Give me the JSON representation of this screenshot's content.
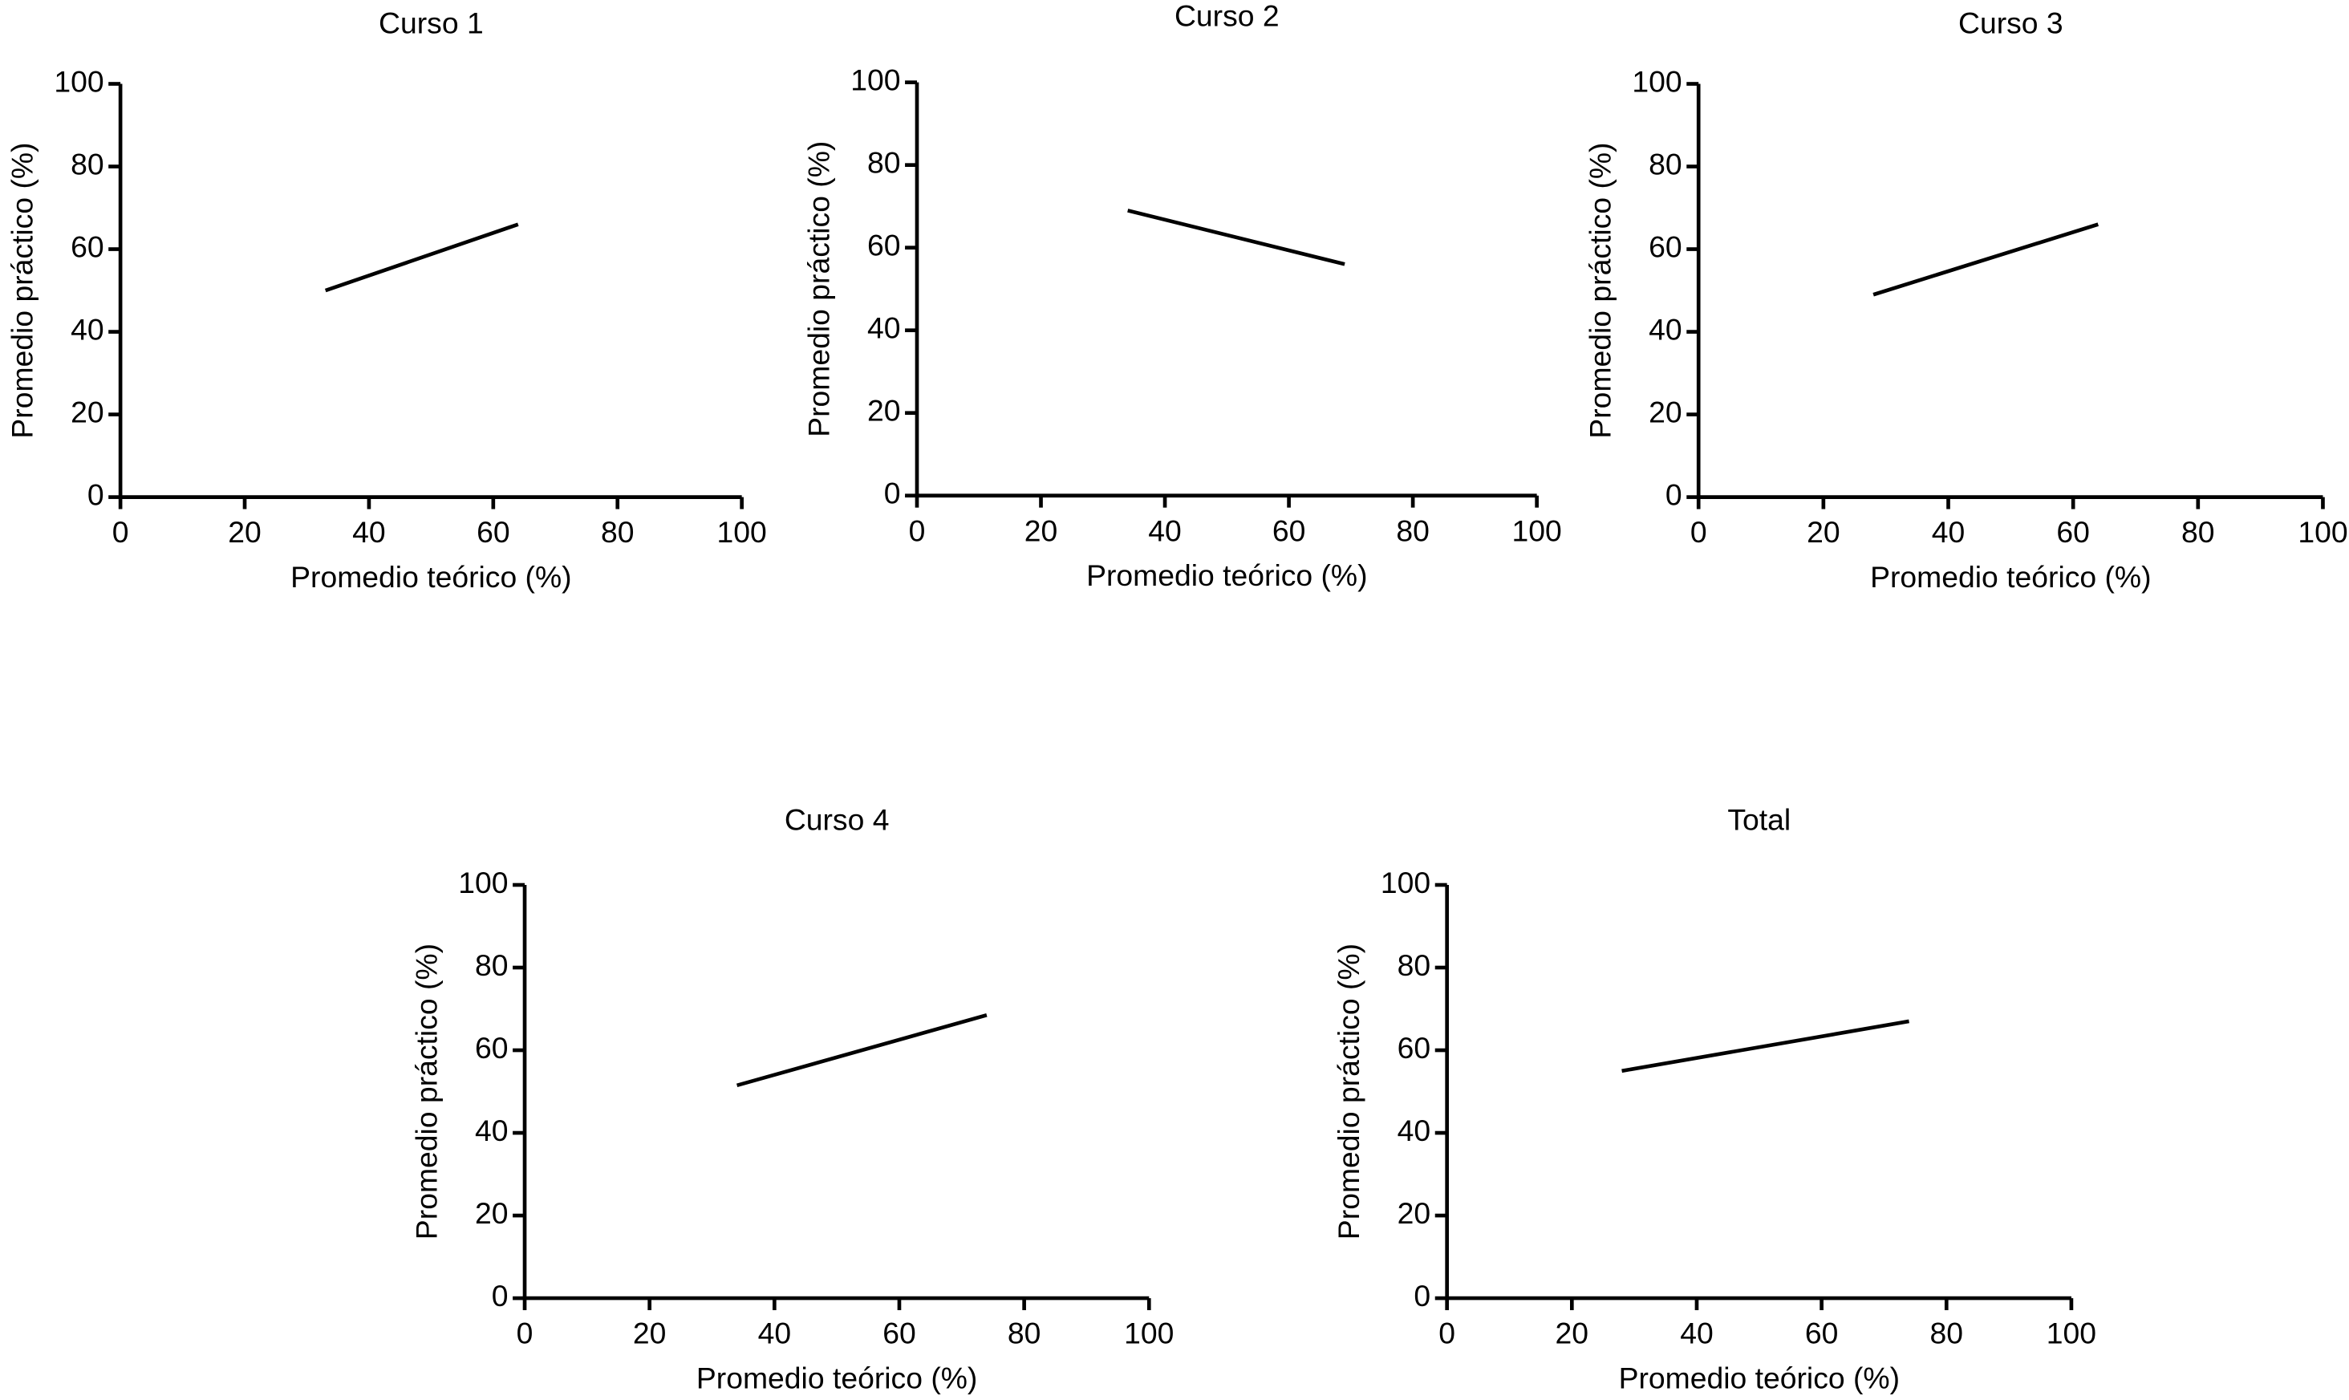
{
  "chart_data": [
    {
      "type": "line",
      "title": "Curso 1",
      "xlabel": "Promedio teórico (%)",
      "ylabel": "Promedio práctico (%)",
      "x": [
        33,
        64
      ],
      "values": [
        50,
        66
      ],
      "color": "#000000",
      "xlim": [
        0,
        100
      ],
      "ylim": [
        0,
        100
      ],
      "xticks": [
        0,
        20,
        40,
        60,
        80,
        100
      ],
      "yticks": [
        0,
        20,
        40,
        60,
        80,
        100
      ]
    },
    {
      "type": "line",
      "title": "Curso 2",
      "xlabel": "Promedio teórico (%)",
      "ylabel": "Promedio práctico (%)",
      "x": [
        34,
        69
      ],
      "values": [
        69,
        56
      ],
      "color": "#000000",
      "xlim": [
        0,
        100
      ],
      "ylim": [
        0,
        100
      ],
      "xticks": [
        0,
        20,
        40,
        60,
        80,
        100
      ],
      "yticks": [
        0,
        20,
        40,
        60,
        80,
        100
      ]
    },
    {
      "type": "line",
      "title": "Curso 3",
      "xlabel": "Promedio teórico (%)",
      "ylabel": "Promedio práctico (%)",
      "x": [
        28,
        64
      ],
      "values": [
        49,
        66
      ],
      "color": "#000000",
      "xlim": [
        0,
        100
      ],
      "ylim": [
        0,
        100
      ],
      "xticks": [
        0,
        20,
        40,
        60,
        80,
        100
      ],
      "yticks": [
        0,
        20,
        40,
        60,
        80,
        100
      ]
    },
    {
      "type": "line",
      "title": "Curso 4",
      "xlabel": "Promedio teórico (%)",
      "ylabel": "Promedio práctico (%)",
      "x": [
        34,
        74
      ],
      "values": [
        51.5,
        68.5
      ],
      "color": "#000000",
      "xlim": [
        0,
        100
      ],
      "ylim": [
        0,
        100
      ],
      "xticks": [
        0,
        20,
        40,
        60,
        80,
        100
      ],
      "yticks": [
        0,
        20,
        40,
        60,
        80,
        100
      ]
    },
    {
      "type": "line",
      "title": "Total",
      "xlabel": "Promedio teórico (%)",
      "ylabel": "Promedio práctico (%)",
      "x": [
        28,
        74
      ],
      "values": [
        55,
        67
      ],
      "color": "#000000",
      "xlim": [
        0,
        100
      ],
      "ylim": [
        0,
        100
      ],
      "xticks": [
        0,
        20,
        40,
        60,
        80,
        100
      ],
      "yticks": [
        0,
        20,
        40,
        60,
        80,
        100
      ]
    }
  ]
}
